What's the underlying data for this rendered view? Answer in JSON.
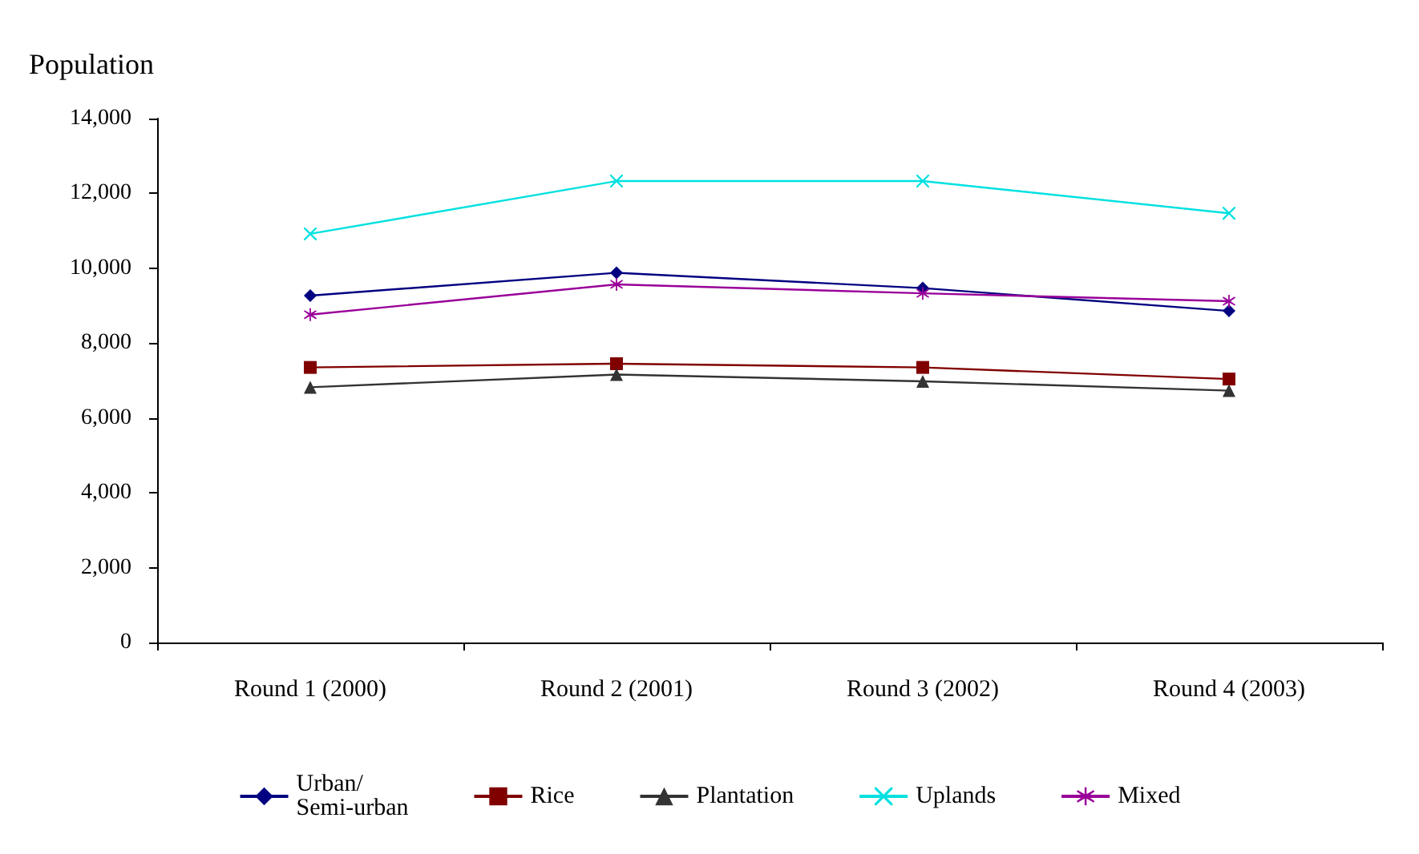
{
  "chart_data": {
    "type": "line",
    "ylabel": "Population",
    "categories": [
      "Round 1 (2000)",
      "Round 2 (2001)",
      "Round 3 (2002)",
      "Round 4 (2003)"
    ],
    "series": [
      {
        "name": "Urban/\nSemi-urban",
        "color": "#000080",
        "marker": "diamond",
        "values": [
          9270,
          9880,
          9470,
          8860
        ]
      },
      {
        "name": "Rice",
        "color": "#800000",
        "marker": "square",
        "values": [
          7350,
          7450,
          7350,
          7040
        ]
      },
      {
        "name": "Plantation",
        "color": "#333333",
        "marker": "triangle",
        "values": [
          6820,
          7160,
          6980,
          6730
        ]
      },
      {
        "name": "Uplands",
        "color": "#00e0e0",
        "marker": "cross",
        "values": [
          10920,
          12330,
          12330,
          11470
        ]
      },
      {
        "name": "Mixed",
        "color": "#990099",
        "marker": "star",
        "values": [
          8760,
          9570,
          9330,
          9120
        ]
      }
    ],
    "ylim": [
      0,
      14000
    ],
    "yticks": [
      0,
      {
        "value": 2000,
        "label": "2,000"
      },
      {
        "value": 4000,
        "label": "4,000"
      },
      {
        "value": 6000,
        "label": "6,000"
      },
      {
        "value": 8000,
        "label": "8,000"
      },
      {
        "value": 10000,
        "label": "10,000"
      },
      {
        "value": 12000,
        "label": "12,000"
      },
      {
        "value": 14000,
        "label": "14,000"
      }
    ],
    "grid": false,
    "legend": "bottom",
    "line_style": "solid"
  }
}
